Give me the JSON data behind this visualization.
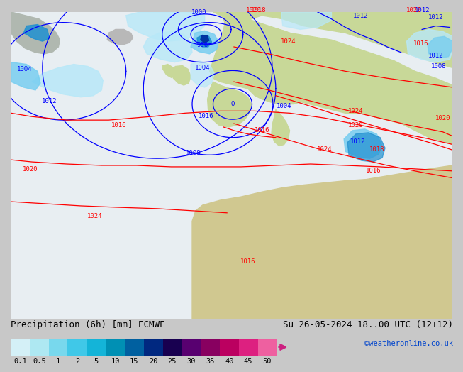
{
  "title_left": "Precipitation (6h) [mm] ECMWF",
  "title_right": "Su 26-05-2024 18..00 UTC (12+12)",
  "credit": "©weatheronline.co.uk",
  "colorbar_labels": [
    "0.1",
    "0.5",
    "1",
    "2",
    "5",
    "10",
    "15",
    "20",
    "25",
    "30",
    "35",
    "40",
    "45",
    "50"
  ],
  "colorbar_colors": [
    "#d4f0f7",
    "#aee8f2",
    "#78d8ed",
    "#40c8e8",
    "#14b4d8",
    "#0090b4",
    "#0060a0",
    "#002880",
    "#180050",
    "#580070",
    "#880060",
    "#bb0060",
    "#dd2080",
    "#ee60a0"
  ],
  "ocean_color": "#e8eef2",
  "land_color": "#c8d898",
  "land2_color": "#d8c898",
  "bg_color": "#c8c8c8",
  "prec_light": "#b8e8f8",
  "prec_med": "#78cef0",
  "prec_dark": "#2090d0",
  "prec_vdark": "#0030a0",
  "label_fontsize": 7.5,
  "title_fontsize": 9.0
}
